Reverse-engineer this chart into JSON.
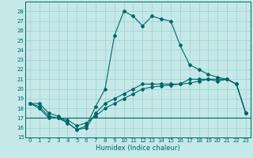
{
  "title": "",
  "xlabel": "Humidex (Indice chaleur)",
  "ylabel": "",
  "bg_color": "#c5e8e8",
  "grid_color": "#a0d0d0",
  "line_color": "#006666",
  "xlim": [
    -0.5,
    23.5
  ],
  "ylim": [
    15,
    29
  ],
  "yticks": [
    15,
    16,
    17,
    18,
    19,
    20,
    21,
    22,
    23,
    24,
    25,
    26,
    27,
    28
  ],
  "xticks": [
    0,
    1,
    2,
    3,
    4,
    5,
    6,
    7,
    8,
    9,
    10,
    11,
    12,
    13,
    14,
    15,
    16,
    17,
    18,
    19,
    20,
    21,
    22,
    23
  ],
  "curve_main_x": [
    0,
    1,
    2,
    3,
    4,
    5,
    6,
    7,
    8,
    9,
    10,
    11,
    12,
    13,
    14,
    15,
    16,
    17,
    18,
    19,
    20,
    21,
    22,
    23
  ],
  "curve_main_y": [
    18.5,
    18.5,
    17.5,
    17.2,
    16.5,
    15.8,
    16.2,
    18.2,
    20.0,
    25.5,
    28.0,
    27.5,
    26.5,
    27.5,
    27.2,
    27.0,
    24.5,
    22.5,
    22.0,
    21.5,
    21.2,
    21.0,
    20.5,
    17.5
  ],
  "curve_slow1_x": [
    0,
    1,
    2,
    3,
    4,
    5,
    6,
    7,
    8,
    9,
    10,
    11,
    12,
    13,
    14,
    15,
    16,
    17,
    18,
    19,
    20,
    21,
    22,
    23
  ],
  "curve_slow1_y": [
    18.5,
    18.2,
    17.2,
    17.0,
    16.8,
    16.2,
    16.5,
    17.2,
    18.0,
    18.5,
    19.0,
    19.5,
    20.0,
    20.2,
    20.3,
    20.4,
    20.5,
    20.6,
    20.8,
    21.0,
    21.0,
    21.0,
    20.5,
    17.5
  ],
  "curve_slow2_x": [
    0,
    1,
    2,
    3,
    4,
    5,
    6,
    7,
    8,
    9,
    10,
    11,
    12,
    13,
    14,
    15,
    16,
    17,
    18,
    19,
    20,
    21,
    22,
    23
  ],
  "curve_slow2_y": [
    18.5,
    18.0,
    17.0,
    17.0,
    16.5,
    15.8,
    16.0,
    17.5,
    18.5,
    19.0,
    19.5,
    20.0,
    20.5,
    20.5,
    20.5,
    20.5,
    20.5,
    21.0,
    21.0,
    21.0,
    20.8,
    21.0,
    20.5,
    17.5
  ],
  "flat_line_y": 17.0,
  "marker": "D",
  "marker_size": 2.0,
  "linewidth": 0.8,
  "tick_fontsize": 5.0,
  "xlabel_fontsize": 6.0
}
